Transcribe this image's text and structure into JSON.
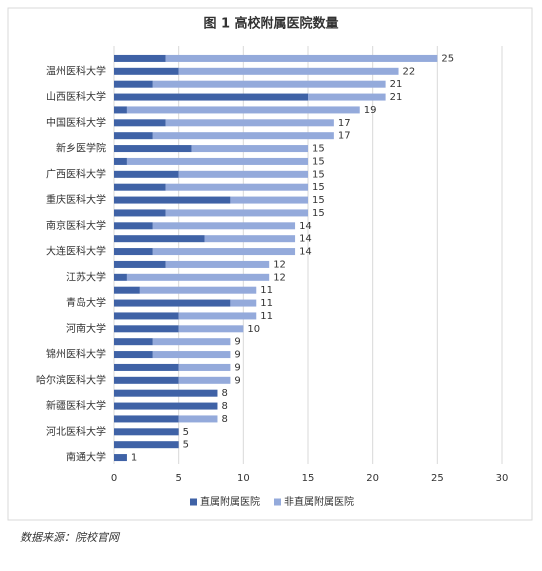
{
  "chart_data": {
    "type": "stacked-barh",
    "title": "图 1  高校附属医院数量",
    "categories": [
      null,
      "温州医科大学",
      null,
      "山西医科大学",
      null,
      "中国医科大学",
      null,
      "新乡医学院",
      null,
      "广西医科大学",
      null,
      "重庆医科大学",
      null,
      "南京医科大学",
      null,
      "大连医科大学",
      null,
      "江苏大学",
      null,
      "青岛大学",
      null,
      "河南大学",
      null,
      "锦州医科大学",
      null,
      "哈尔滨医科大学",
      null,
      "新疆医科大学",
      null,
      "河北医科大学",
      null,
      "南通大学"
    ],
    "series": [
      {
        "name": "直属附属医院",
        "color": "#3f62a6",
        "values": [
          4,
          5,
          3,
          15,
          1,
          4,
          3,
          6,
          1,
          5,
          4,
          9,
          4,
          3,
          7,
          3,
          4,
          1,
          2,
          9,
          5,
          5,
          3,
          3,
          5,
          5,
          8,
          8,
          5,
          5,
          5,
          1
        ]
      },
      {
        "name": "非直属附属医院",
        "color": "#94aadb",
        "values": [
          21,
          17,
          18,
          6,
          18,
          13,
          14,
          9,
          14,
          10,
          11,
          6,
          11,
          11,
          7,
          11,
          8,
          11,
          9,
          2,
          6,
          5,
          6,
          6,
          4,
          4,
          0,
          0,
          3,
          0,
          0,
          0
        ]
      }
    ],
    "totals": [
      25,
      22,
      21,
      21,
      19,
      17,
      17,
      15,
      15,
      15,
      15,
      15,
      15,
      14,
      14,
      14,
      12,
      12,
      11,
      11,
      11,
      10,
      9,
      9,
      9,
      9,
      8,
      8,
      8,
      5,
      5,
      1
    ],
    "xlim": [
      0,
      30
    ],
    "xticks": [
      0,
      5,
      10,
      15,
      20,
      25,
      30
    ],
    "grid": true,
    "legend": "bottom",
    "source": "数据来源：院校官网"
  }
}
